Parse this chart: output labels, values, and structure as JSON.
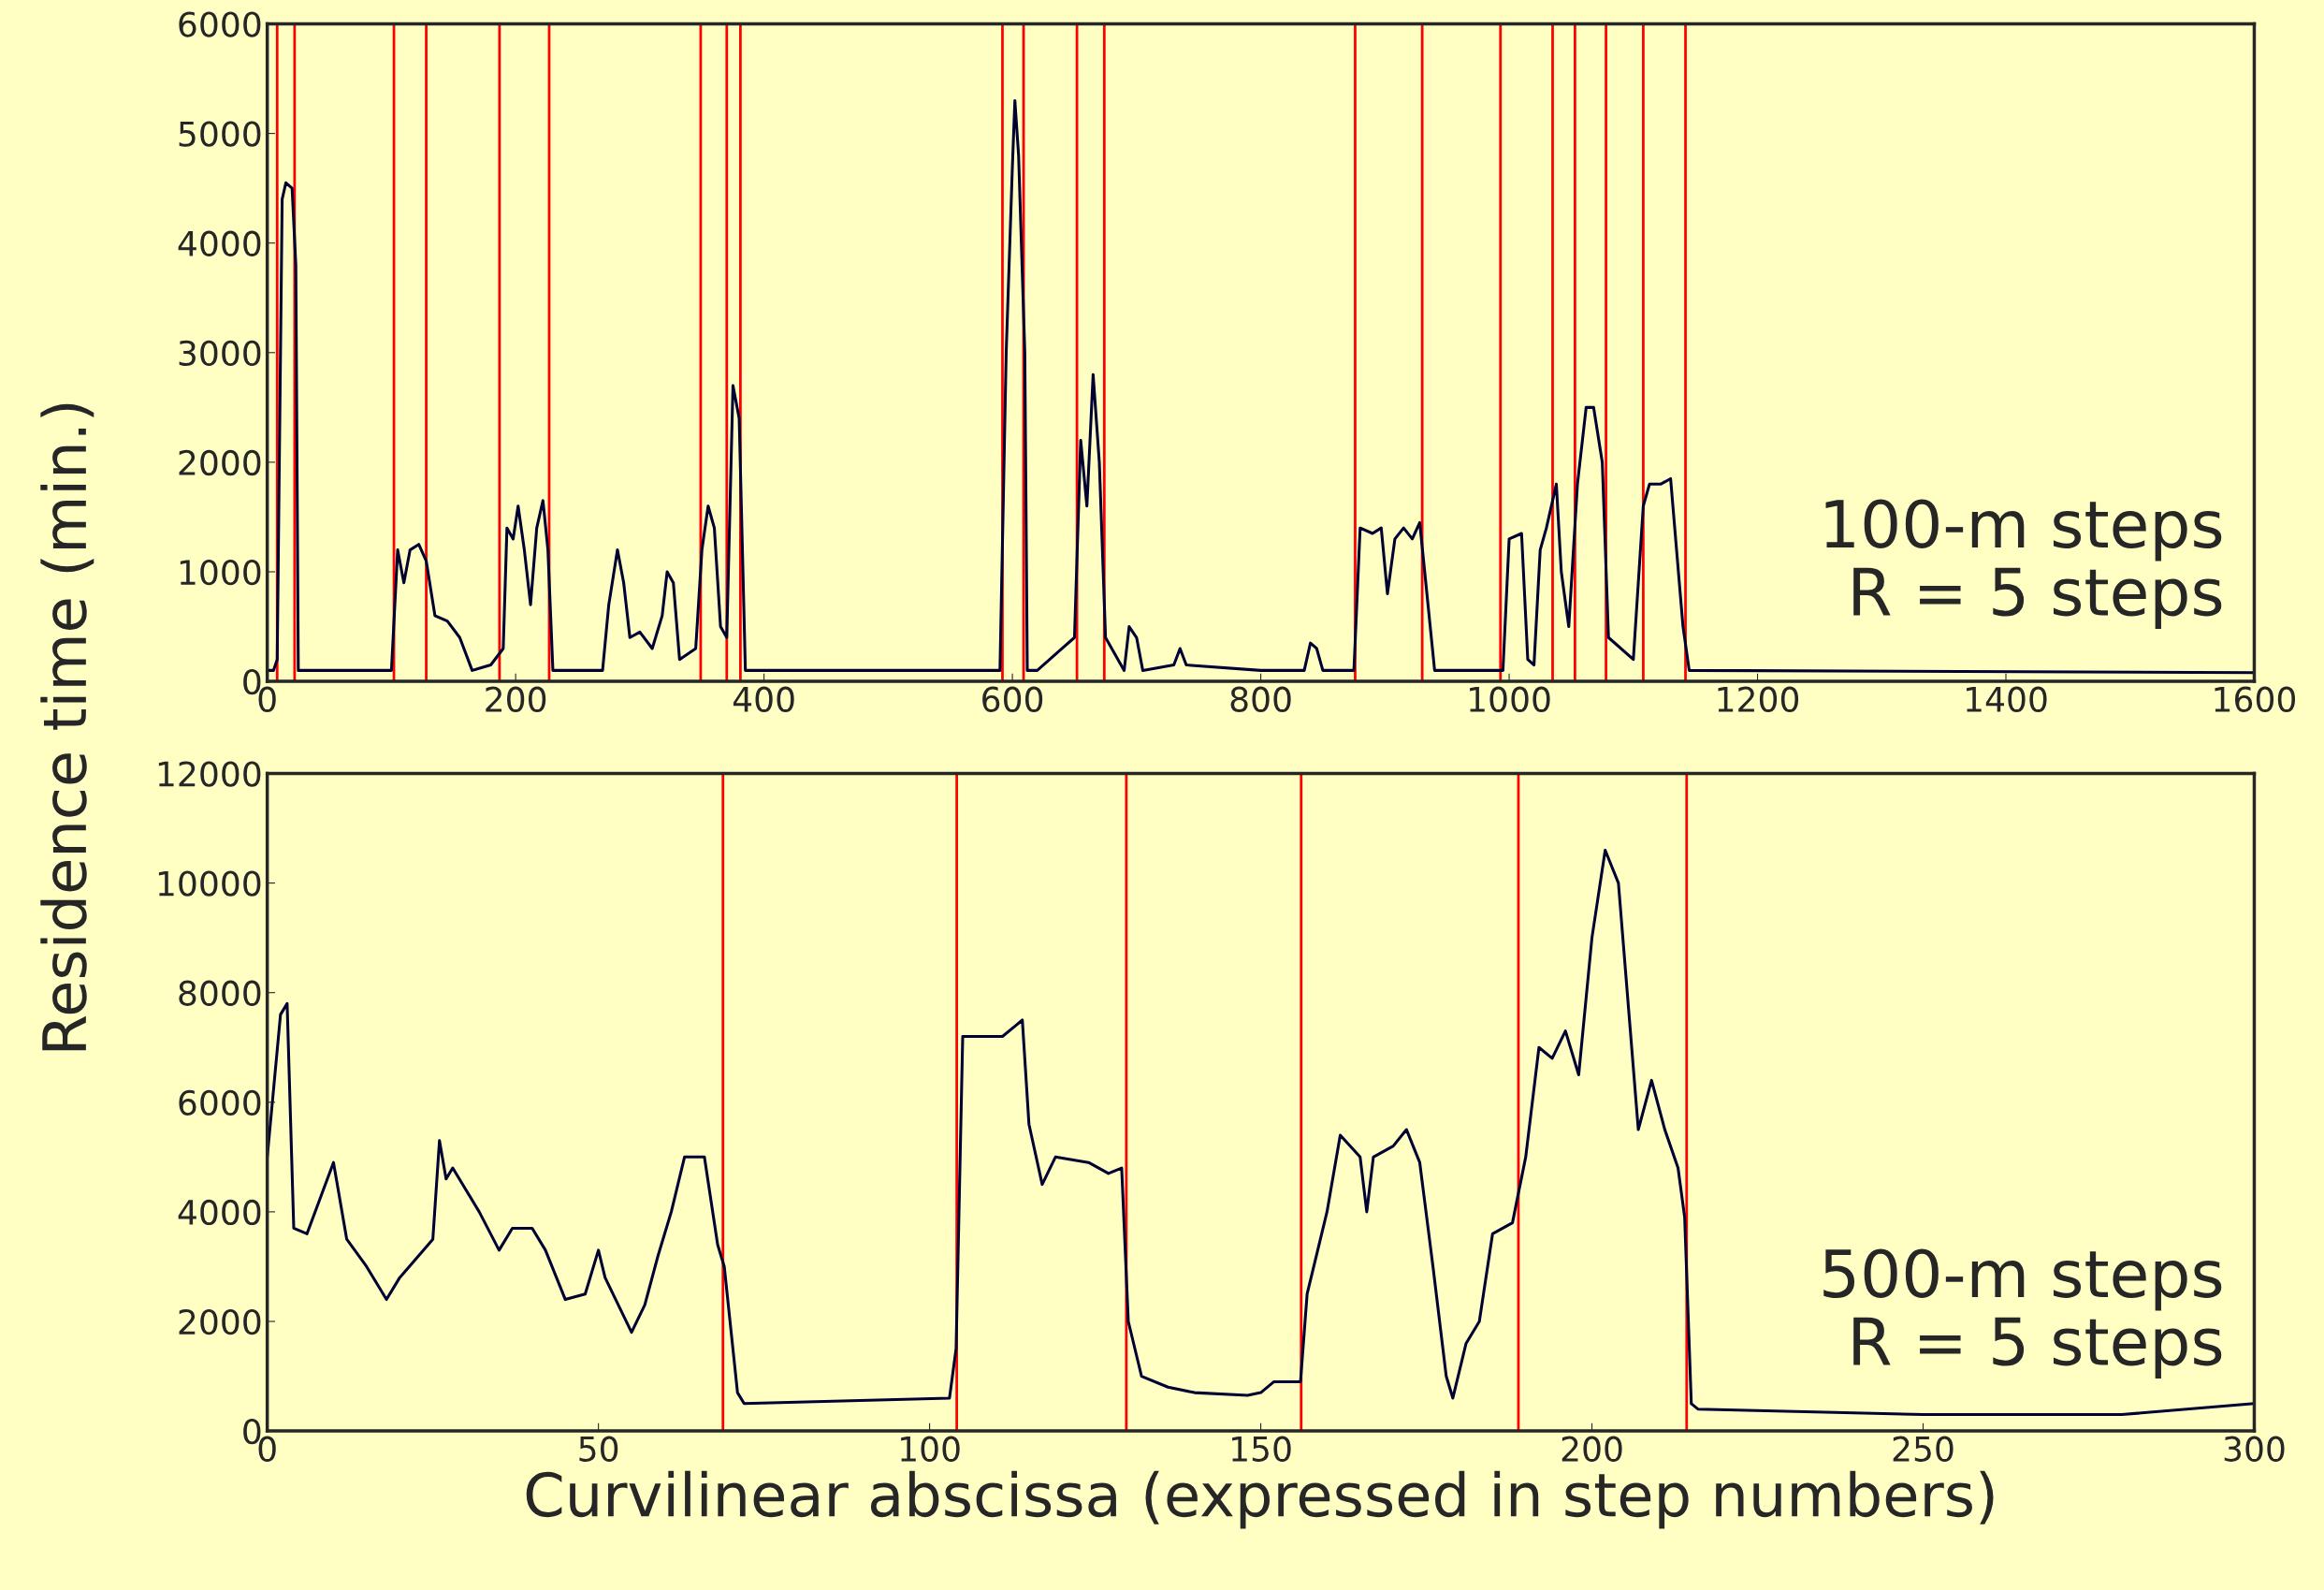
{
  "chart_data": [
    {
      "type": "line",
      "ylabel": "Residence time (min.)",
      "annotations": [
        "100-m steps\nR = 5 steps"
      ],
      "xlim": [
        0,
        1600
      ],
      "xticks": [
        0,
        200,
        400,
        600,
        800,
        1000,
        1200,
        1400,
        1600
      ],
      "ylim": [
        0,
        6000
      ],
      "yticks": [
        0,
        1000,
        2000,
        3000,
        4000,
        5000,
        6000
      ],
      "grid": false,
      "legend": false,
      "series": [
        {
          "color": "#000033",
          "x": [
            0,
            5,
            8,
            12,
            15,
            20,
            23,
            25,
            100,
            105,
            110,
            115,
            122,
            128,
            135,
            145,
            155,
            165,
            180,
            190,
            193,
            198,
            202,
            207,
            212,
            217,
            222,
            226,
            230,
            270,
            275,
            282,
            287,
            292,
            300,
            310,
            318,
            322,
            327,
            332,
            345,
            350,
            355,
            360,
            365,
            370,
            375,
            380,
            385,
            590,
            595,
            600,
            602,
            605,
            610,
            612,
            620,
            640,
            650,
            655,
            660,
            665,
            670,
            675,
            690,
            694,
            700,
            705,
            730,
            735,
            740,
            800,
            835,
            840,
            845,
            850,
            875,
            880,
            890,
            897,
            902,
            908,
            915,
            922,
            928,
            932,
            940,
            995,
            1000,
            1010,
            1015,
            1020,
            1025,
            1030,
            1038,
            1042,
            1048,
            1055,
            1062,
            1068,
            1075,
            1080,
            1100,
            1108,
            1113,
            1122,
            1130,
            1140,
            1145,
            1600
          ],
          "values": [
            100,
            100,
            200,
            4400,
            4550,
            4500,
            3800,
            100,
            100,
            1200,
            900,
            1200,
            1250,
            1100,
            600,
            550,
            400,
            100,
            150,
            300,
            1400,
            1300,
            1600,
            1200,
            700,
            1400,
            1650,
            1200,
            100,
            100,
            700,
            1200,
            900,
            400,
            450,
            300,
            600,
            1000,
            900,
            200,
            300,
            1200,
            1600,
            1400,
            500,
            400,
            2700,
            2400,
            100,
            100,
            3000,
            4700,
            5300,
            4800,
            3000,
            100,
            100,
            300,
            400,
            2200,
            1600,
            2800,
            2000,
            400,
            100,
            500,
            400,
            100,
            150,
            300,
            150,
            100,
            100,
            350,
            300,
            100,
            100,
            1400,
            1350,
            1400,
            800,
            1300,
            1400,
            1300,
            1450,
            1000,
            100,
            100,
            1300,
            1350,
            200,
            150,
            1200,
            1400,
            1800,
            1000,
            500,
            1800,
            2500,
            2500,
            2000,
            400,
            200,
            1600,
            1800,
            1800,
            1850,
            500,
            100,
            80
          ]
        }
      ],
      "ref_lines": [
        {
          "axis": "x",
          "value": 8,
          "color": "#ff0000"
        },
        {
          "axis": "x",
          "value": 22,
          "color": "#ff0000"
        },
        {
          "axis": "x",
          "value": 102,
          "color": "#ff0000"
        },
        {
          "axis": "x",
          "value": 128,
          "color": "#ff0000"
        },
        {
          "axis": "x",
          "value": 187,
          "color": "#ff0000"
        },
        {
          "axis": "x",
          "value": 227,
          "color": "#ff0000"
        },
        {
          "axis": "x",
          "value": 349,
          "color": "#ff0000"
        },
        {
          "axis": "x",
          "value": 370,
          "color": "#ff0000"
        },
        {
          "axis": "x",
          "value": 381,
          "color": "#ff0000"
        },
        {
          "axis": "x",
          "value": 592,
          "color": "#ff0000"
        },
        {
          "axis": "x",
          "value": 609,
          "color": "#ff0000"
        },
        {
          "axis": "x",
          "value": 652,
          "color": "#ff0000"
        },
        {
          "axis": "x",
          "value": 674,
          "color": "#ff0000"
        },
        {
          "axis": "x",
          "value": 876,
          "color": "#ff0000"
        },
        {
          "axis": "x",
          "value": 930,
          "color": "#ff0000"
        },
        {
          "axis": "x",
          "value": 993,
          "color": "#ff0000"
        },
        {
          "axis": "x",
          "value": 1035,
          "color": "#ff0000"
        },
        {
          "axis": "x",
          "value": 1053,
          "color": "#ff0000"
        },
        {
          "axis": "x",
          "value": 1078,
          "color": "#ff0000"
        },
        {
          "axis": "x",
          "value": 1108,
          "color": "#ff0000"
        },
        {
          "axis": "x",
          "value": 1142,
          "color": "#ff0000"
        }
      ]
    },
    {
      "type": "line",
      "xlabel": "Curvilinear abscissa (expressed in step numbers)",
      "annotations": [
        "500-m steps\nR = 5 steps"
      ],
      "xlim": [
        0,
        300
      ],
      "xticks": [
        0,
        50,
        100,
        150,
        200,
        250,
        300
      ],
      "ylim": [
        0,
        12000
      ],
      "yticks": [
        0,
        2000,
        4000,
        6000,
        8000,
        10000,
        12000
      ],
      "grid": false,
      "legend": false,
      "series": [
        {
          "color": "#000033",
          "x": [
            0,
            2,
            3,
            4,
            6,
            10,
            12,
            15,
            18,
            20,
            25,
            26,
            27,
            28,
            32,
            35,
            37,
            40,
            42,
            45,
            48,
            50,
            51,
            55,
            57,
            59,
            61,
            63,
            66,
            68,
            69,
            71,
            72,
            103,
            104,
            105,
            111,
            113,
            114,
            115,
            117,
            119,
            124,
            127,
            129,
            130,
            132,
            136,
            140,
            148,
            150,
            152,
            156,
            157,
            160,
            162,
            165,
            166,
            167,
            170,
            172,
            174,
            176,
            178,
            179,
            181,
            183,
            185,
            188,
            190,
            192,
            194,
            196,
            198,
            200,
            202,
            204,
            206,
            207,
            209,
            211,
            213,
            214,
            215,
            216,
            250,
            280,
            300
          ],
          "values": [
            5000,
            7600,
            7800,
            3700,
            3600,
            4900,
            3500,
            3000,
            2400,
            2800,
            3500,
            5300,
            4600,
            4800,
            4000,
            3300,
            3700,
            3700,
            3300,
            2400,
            2500,
            3300,
            2800,
            1800,
            2300,
            3200,
            4000,
            5000,
            5000,
            3400,
            3000,
            700,
            500,
            600,
            1500,
            7200,
            7200,
            7400,
            7500,
            5600,
            4500,
            5000,
            4900,
            4700,
            4800,
            2000,
            1000,
            800,
            700,
            650,
            700,
            900,
            900,
            2500,
            4000,
            5400,
            5000,
            4000,
            5000,
            5200,
            5500,
            4900,
            3000,
            1000,
            600,
            1600,
            2000,
            3600,
            3800,
            5000,
            7000,
            6800,
            7300,
            6500,
            9000,
            10600,
            10000,
            7000,
            5500,
            6400,
            5500,
            4800,
            3900,
            500,
            400,
            300,
            300,
            500
          ]
        }
      ],
      "ref_lines": [
        {
          "axis": "x",
          "value": 68.8,
          "color": "#ff0000"
        },
        {
          "axis": "x",
          "value": 104.1,
          "color": "#ff0000"
        },
        {
          "axis": "x",
          "value": 129.7,
          "color": "#ff0000"
        },
        {
          "axis": "x",
          "value": 156.1,
          "color": "#ff0000"
        },
        {
          "axis": "x",
          "value": 188.9,
          "color": "#ff0000"
        },
        {
          "axis": "x",
          "value": 214.3,
          "color": "#ff0000"
        }
      ]
    }
  ]
}
